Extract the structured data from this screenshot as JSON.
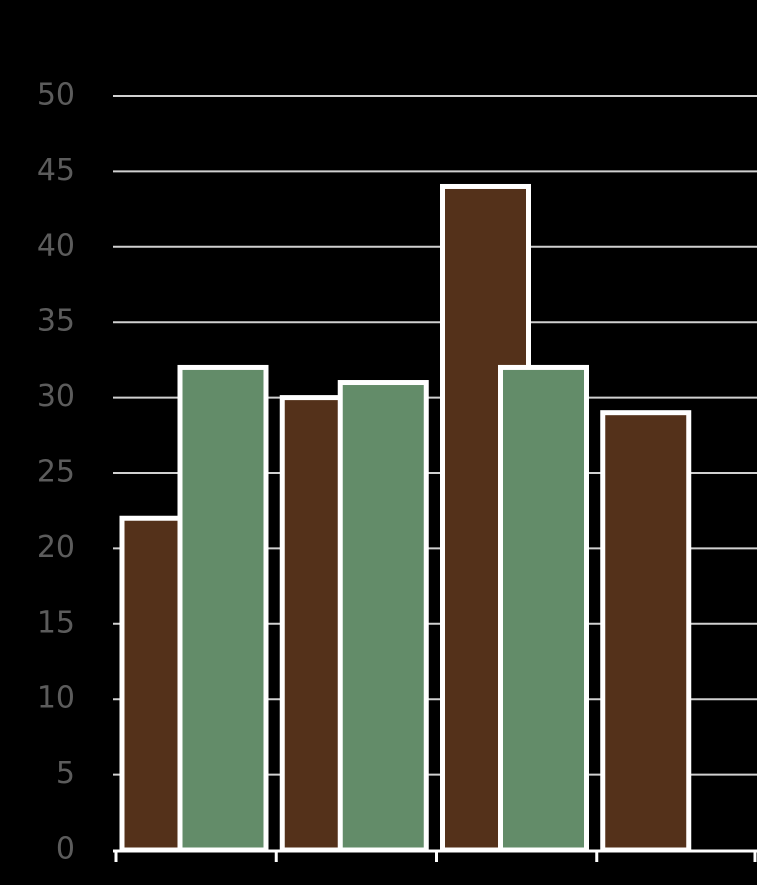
{
  "chart_data": {
    "type": "bar",
    "categories": [
      null,
      null,
      null,
      null
    ],
    "series": [
      {
        "color": "#54311a",
        "values": [
          22,
          30,
          44,
          29
        ]
      },
      {
        "color": "#638c69",
        "values": [
          32,
          31,
          32,
          null
        ]
      }
    ],
    "ylim": [
      0,
      50
    ],
    "yticks": [
      0,
      5,
      10,
      15,
      20,
      25,
      30,
      35,
      40,
      45,
      50
    ],
    "grid": true
  }
}
